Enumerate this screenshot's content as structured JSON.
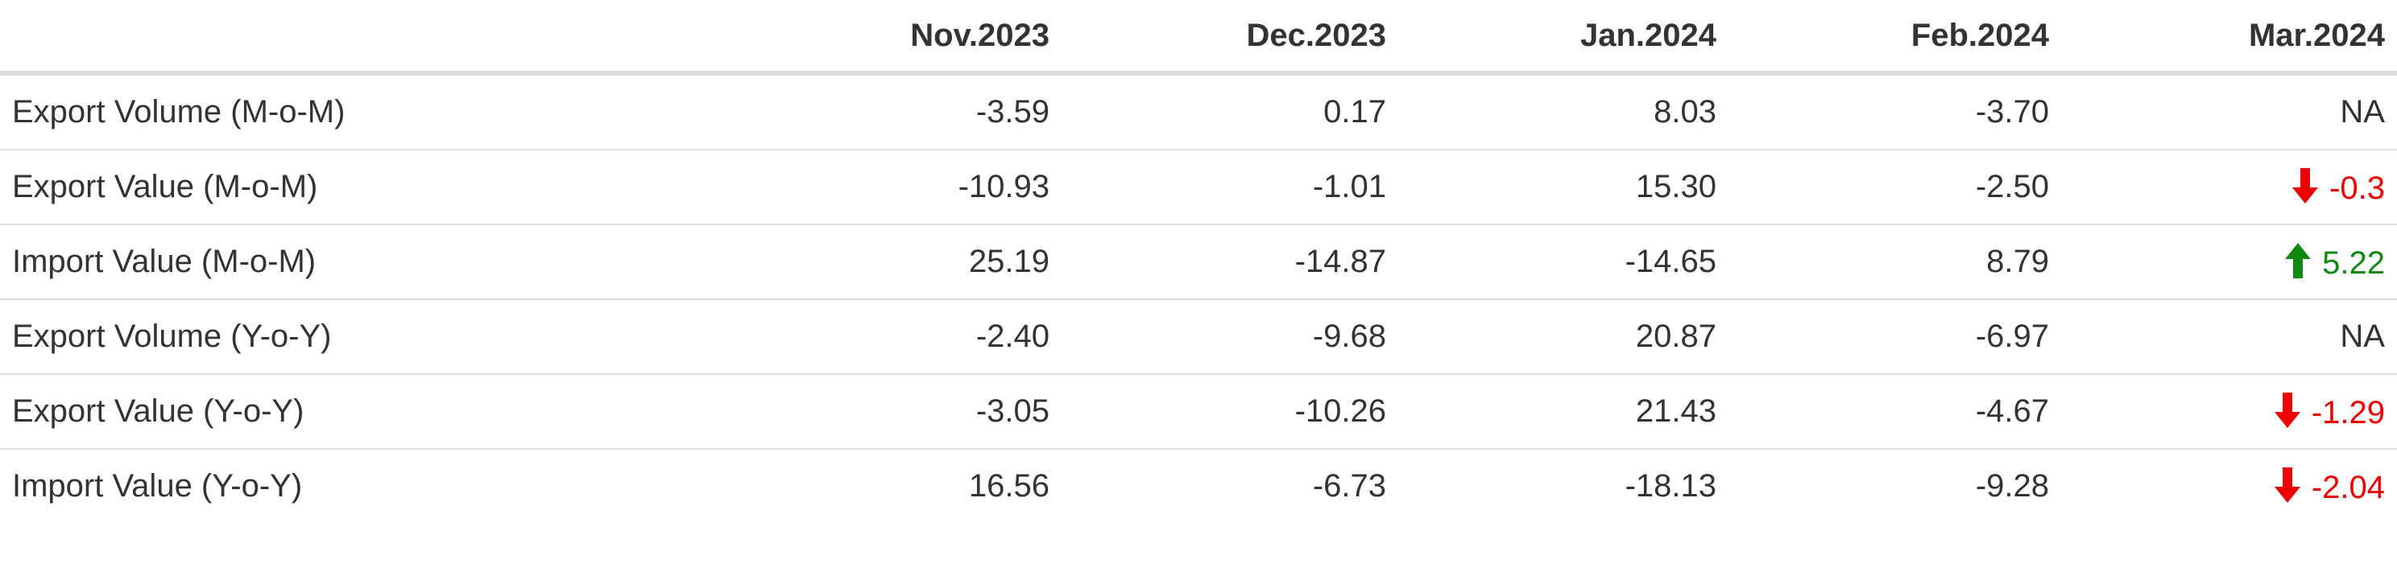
{
  "table": {
    "columns": [
      "",
      "Nov.2023",
      "Dec.2023",
      "Jan.2024",
      "Feb.2024",
      "Mar.2024"
    ],
    "rows": [
      {
        "label": "Export Volume (M-o-M)",
        "values": [
          "-3.59",
          "0.17",
          "8.03",
          "-3.70"
        ],
        "last": {
          "value": "NA",
          "trend": "none"
        }
      },
      {
        "label": "Export Value (M-o-M)",
        "values": [
          "-10.93",
          "-1.01",
          "15.30",
          "-2.50"
        ],
        "last": {
          "value": "-0.3",
          "trend": "down"
        }
      },
      {
        "label": "Import Value (M-o-M)",
        "values": [
          "25.19",
          "-14.87",
          "-14.65",
          "8.79"
        ],
        "last": {
          "value": "5.22",
          "trend": "up"
        }
      },
      {
        "label": "Export Volume (Y-o-Y)",
        "values": [
          "-2.40",
          "-9.68",
          "20.87",
          "-6.97"
        ],
        "last": {
          "value": "NA",
          "trend": "none"
        }
      },
      {
        "label": "Export Value (Y-o-Y)",
        "values": [
          "-3.05",
          "-10.26",
          "21.43",
          "-4.67"
        ],
        "last": {
          "value": "-1.29",
          "trend": "down"
        }
      },
      {
        "label": "Import Value (Y-o-Y)",
        "values": [
          "16.56",
          "-6.73",
          "-18.13",
          "-9.28"
        ],
        "last": {
          "value": "-2.04",
          "trend": "down"
        }
      }
    ]
  },
  "colors": {
    "down": "#ee0000",
    "up": "#118811",
    "text": "#333333",
    "rule": "#dddddd"
  },
  "icons": {
    "down": "arrow-down-icon",
    "up": "arrow-up-icon"
  }
}
